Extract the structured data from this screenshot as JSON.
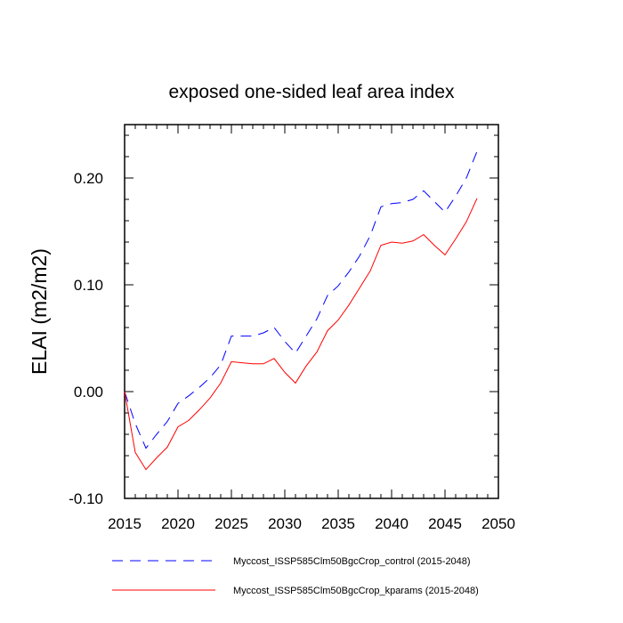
{
  "chart_data": {
    "type": "line",
    "title": "exposed one-sided leaf area index",
    "xlabel": "",
    "ylabel": "ELAI  (m2/m2)",
    "xlim": [
      2015,
      2050
    ],
    "ylim": [
      -0.1,
      0.25
    ],
    "xticks": [
      2015,
      2020,
      2025,
      2030,
      2035,
      2040,
      2045,
      2050
    ],
    "xtick_labels": [
      "2015",
      "2020",
      "2025",
      "2030",
      "2035",
      "2040",
      "2045",
      "2050"
    ],
    "yticks": [
      -0.1,
      0.0,
      0.1,
      0.2
    ],
    "ytick_labels": [
      "-0.10",
      "0.00",
      "0.10",
      "0.20"
    ],
    "grid": false,
    "legend_position": "bottom",
    "x": [
      2015,
      2016,
      2017,
      2018,
      2019,
      2020,
      2021,
      2022,
      2023,
      2024,
      2025,
      2026,
      2027,
      2028,
      2029,
      2030,
      2031,
      2032,
      2033,
      2034,
      2035,
      2036,
      2037,
      2038,
      2039,
      2040,
      2041,
      2042,
      2043,
      2044,
      2045,
      2046,
      2047,
      2048
    ],
    "series": [
      {
        "name": "Myccost_ISSP585Clm50BgcCrop_control (2015-2048)",
        "color": "#0000ff",
        "dash": "dashed",
        "values": [
          0.0,
          -0.03,
          -0.053,
          -0.04,
          -0.028,
          -0.011,
          -0.004,
          0.004,
          0.013,
          0.025,
          0.052,
          0.052,
          0.052,
          0.055,
          0.06,
          0.047,
          0.036,
          0.052,
          0.068,
          0.09,
          0.099,
          0.112,
          0.127,
          0.146,
          0.173,
          0.176,
          0.177,
          0.18,
          0.188,
          0.178,
          0.168,
          0.183,
          0.2,
          0.225
        ]
      },
      {
        "name": "Myccost_ISSP585Clm50BgcCrop_kparams (2015-2048)",
        "color": "#ff0000",
        "dash": "solid",
        "values": [
          0.0,
          -0.057,
          -0.073,
          -0.062,
          -0.052,
          -0.033,
          -0.027,
          -0.017,
          -0.006,
          0.008,
          0.028,
          0.027,
          0.026,
          0.026,
          0.031,
          0.018,
          0.008,
          0.024,
          0.037,
          0.057,
          0.067,
          0.081,
          0.097,
          0.113,
          0.137,
          0.14,
          0.139,
          0.141,
          0.147,
          0.137,
          0.128,
          0.143,
          0.159,
          0.181
        ]
      }
    ]
  }
}
